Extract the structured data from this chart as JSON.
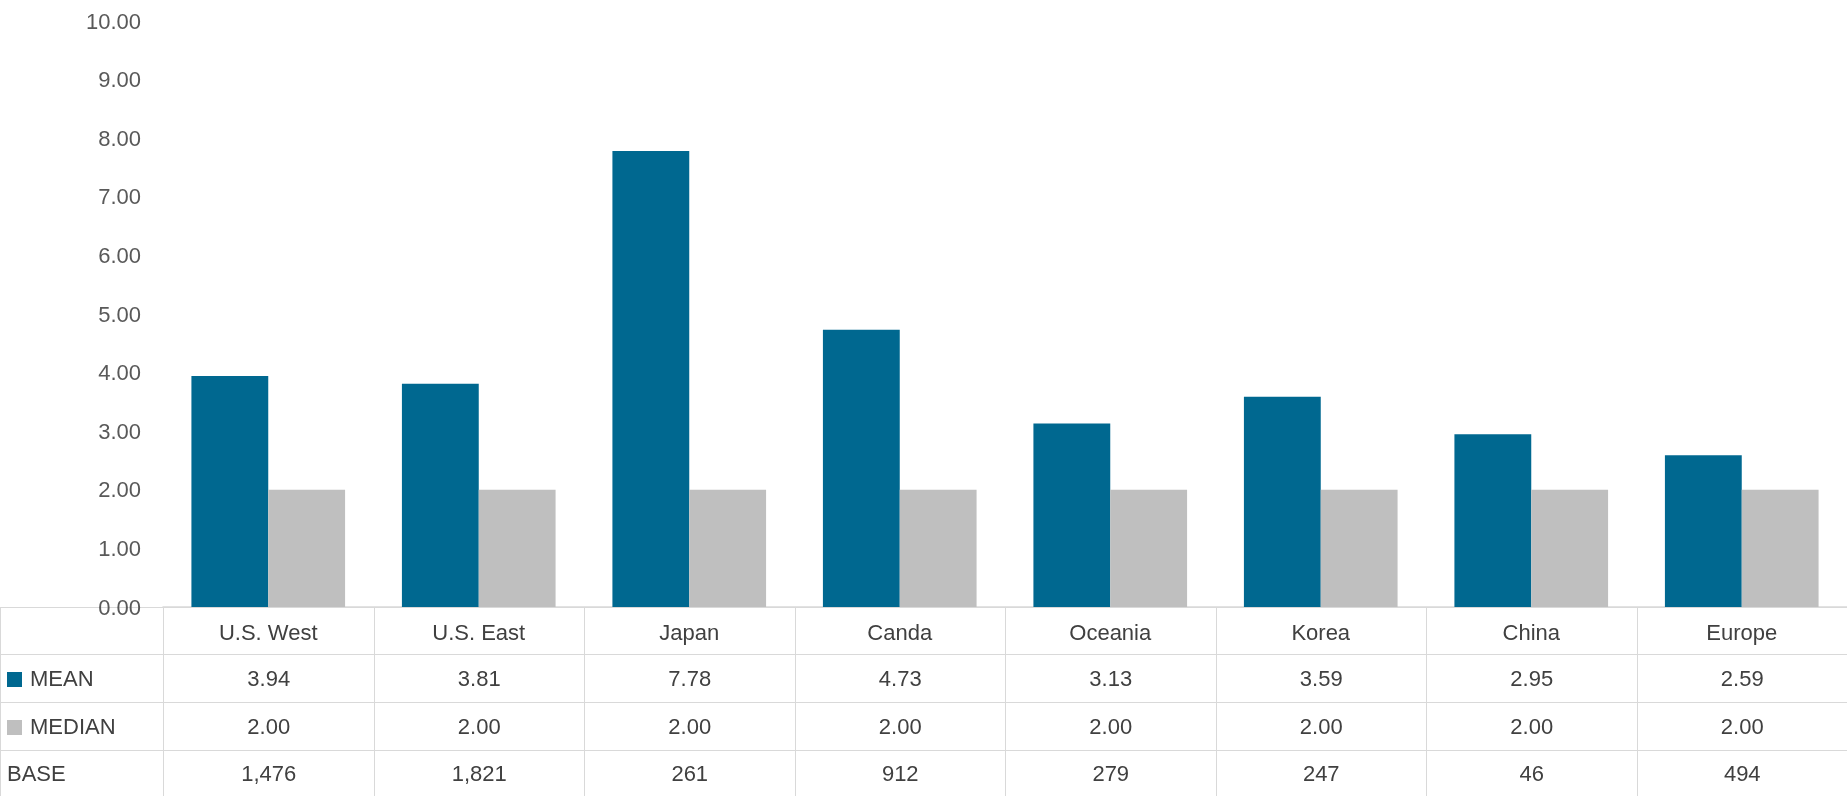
{
  "chart_data": {
    "type": "bar",
    "categories": [
      "U.S. West",
      "U.S. East",
      "Japan",
      "Canda",
      "Oceania",
      "Korea",
      "China",
      "Europe"
    ],
    "series": [
      {
        "name": "MEAN",
        "color": "#006890",
        "values": [
          3.94,
          3.81,
          7.78,
          4.73,
          3.13,
          3.59,
          2.95,
          2.59
        ],
        "value_labels": [
          "3.94",
          "3.81",
          "7.78",
          "4.73",
          "3.13",
          "3.59",
          "2.95",
          "2.59"
        ]
      },
      {
        "name": "MEDIAN",
        "color": "#bfbfbf",
        "values": [
          2,
          2,
          2,
          2,
          2,
          2,
          2,
          2
        ],
        "value_labels": [
          "2.00",
          "2.00",
          "2.00",
          "2.00",
          "2.00",
          "2.00",
          "2.00",
          "2.00"
        ]
      }
    ],
    "ylim": [
      0,
      10
    ],
    "yticks": [
      {
        "value": 0,
        "label": "0.00"
      },
      {
        "value": 1,
        "label": "1.00"
      },
      {
        "value": 2,
        "label": "2.00"
      },
      {
        "value": 3,
        "label": "3.00"
      },
      {
        "value": 4,
        "label": "4.00"
      },
      {
        "value": 5,
        "label": "5.00"
      },
      {
        "value": 6,
        "label": "6.00"
      },
      {
        "value": 7,
        "label": "7.00"
      },
      {
        "value": 8,
        "label": "8.00"
      },
      {
        "value": 9,
        "label": "9.00"
      },
      {
        "value": 10,
        "label": "10.00"
      }
    ],
    "grid": false,
    "legend": "bottom",
    "annotations": [
      "BASE",
      "1,476",
      "1,821",
      "261",
      "912",
      "279",
      "247",
      "46",
      "494"
    ]
  }
}
